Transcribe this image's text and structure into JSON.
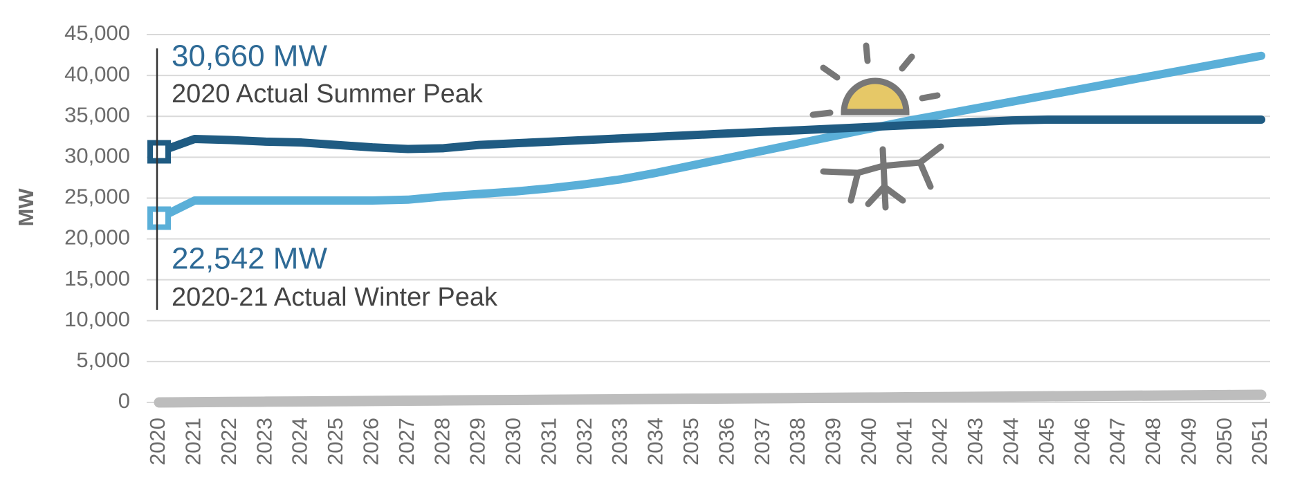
{
  "chart_data": {
    "type": "line",
    "ylabel": "MW",
    "x": [
      "2020",
      "2021",
      "2022",
      "2023",
      "2024",
      "2025",
      "2026",
      "2027",
      "2028",
      "2029",
      "2030",
      "2031",
      "2032",
      "2033",
      "2034",
      "2035",
      "2036",
      "2037",
      "2038",
      "2039",
      "2040",
      "2041",
      "2042",
      "2043",
      "2044",
      "2045",
      "2046",
      "2047",
      "2048",
      "2049",
      "2050",
      "2051"
    ],
    "series": [
      {
        "name": "2020 Actual Summer Peak",
        "color": "#1f5b82",
        "values": [
          30660,
          32230,
          32100,
          31900,
          31800,
          31500,
          31200,
          31000,
          31100,
          31500,
          31700,
          31900,
          32100,
          32300,
          32500,
          32700,
          32900,
          33100,
          33300,
          33500,
          33700,
          33900,
          34100,
          34300,
          34500,
          34600,
          34600,
          34600,
          34600,
          34600,
          34600,
          34600
        ]
      },
      {
        "name": "2020-21 Actual Winter Peak",
        "color": "#5aafd8",
        "values": [
          22542,
          24700,
          24700,
          24700,
          24700,
          24700,
          24700,
          24800,
          25200,
          25500,
          25800,
          26200,
          26700,
          27300,
          28100,
          29000,
          29900,
          30800,
          31700,
          32600,
          33500,
          34400,
          35200,
          36000,
          36800,
          37600,
          38400,
          39200,
          40000,
          40800,
          41600,
          42400
        ]
      },
      {
        "color": "#bdbdbd",
        "values": [
          0,
          30,
          60,
          90,
          120,
          150,
          180,
          210,
          240,
          270,
          300,
          330,
          360,
          390,
          420,
          450,
          480,
          510,
          540,
          570,
          600,
          630,
          660,
          690,
          720,
          750,
          780,
          810,
          840,
          870,
          900,
          930
        ]
      }
    ],
    "annotations": [
      {
        "value": "30,660 MW",
        "text": "2020 Actual Summer Peak"
      },
      {
        "value": "22,542 MW",
        "text": "2020-21 Actual Winter Peak"
      }
    ],
    "ylim": [
      0,
      45000
    ],
    "yticks": [
      0,
      {
        "value": 5000,
        "label": "5,000"
      },
      {
        "value": 10000,
        "label": "10,000"
      },
      {
        "value": 15000,
        "label": "15,000"
      },
      {
        "value": 20000,
        "label": "20,000"
      },
      {
        "value": 25000,
        "label": "25,000"
      },
      {
        "value": 30000,
        "label": "30,000"
      },
      {
        "value": 35000,
        "label": "35,000"
      },
      {
        "value": 40000,
        "label": "40,000"
      },
      {
        "value": 45000,
        "label": "45,000"
      }
    ],
    "grid": true
  }
}
